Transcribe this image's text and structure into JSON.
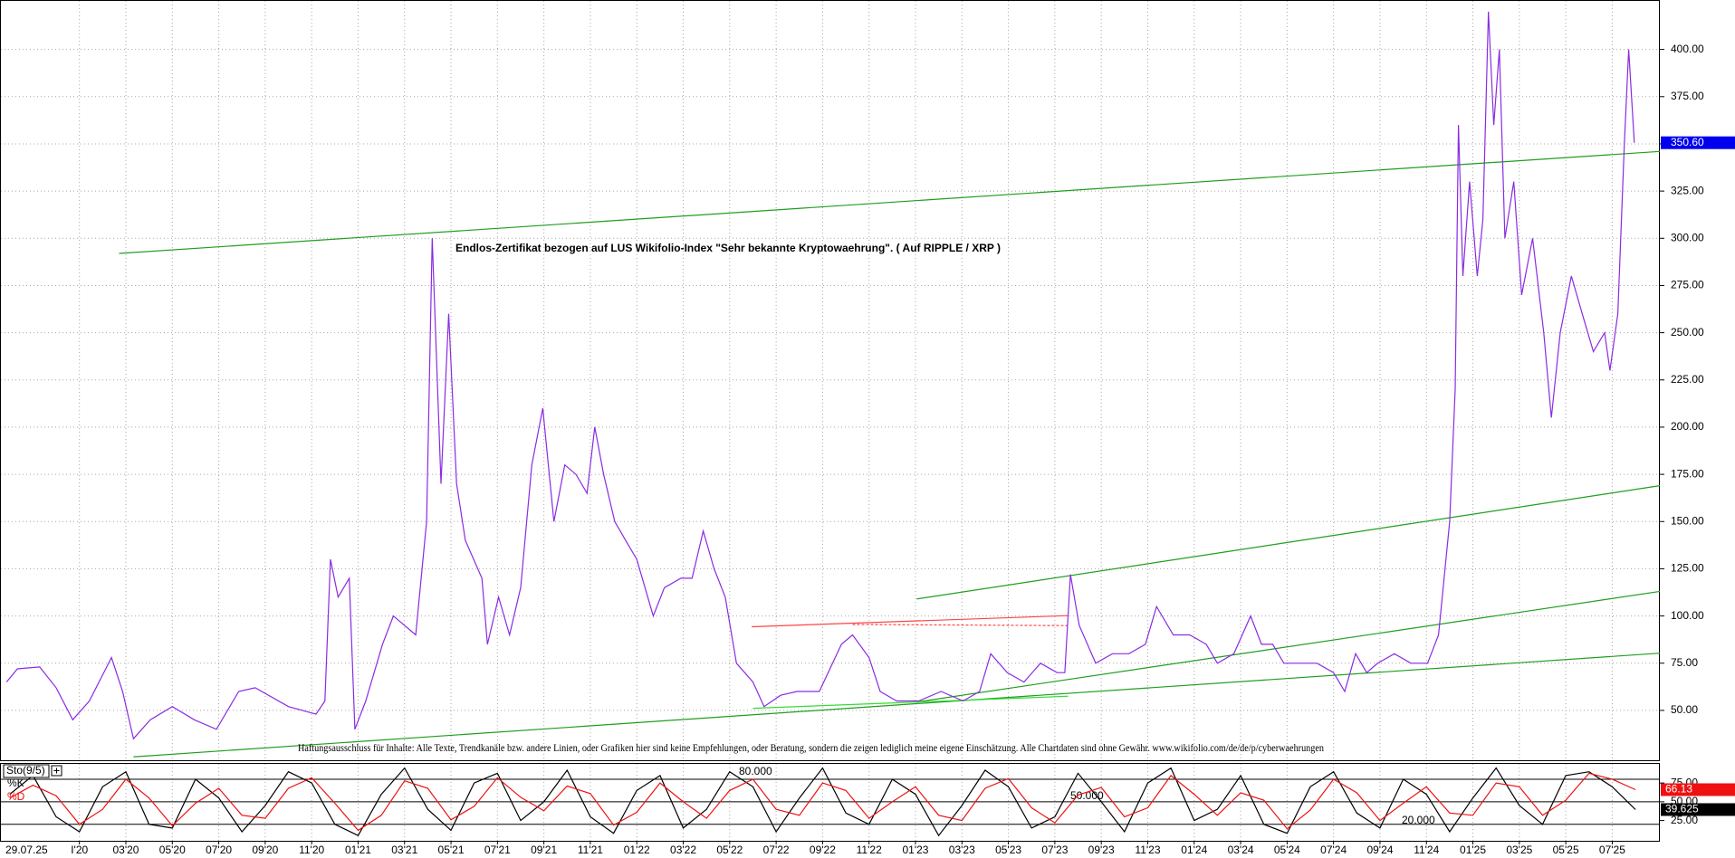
{
  "chart_data": [
    {
      "type": "line",
      "date_label": "29.07.25",
      "annotations": [
        "Endlos-Zertifikat bezogen auf LUS Wikifolio-Index \"Sehr bekannte Kryptowaehrung\". ( Auf RIPPLE / XRP )",
        "Haftungsausschluss für Inhalte: Alle Texte, Trendkanäle bzw. andere Linien, oder Grafiken hier sind keine Empfehlungen, oder Beratung, sondern die zeigen lediglich meine eigene Einschätzung. Alle Chartdaten sind ohne Gewähr.  www.wikifolio.com/de/de/p/cyberwaehrungen"
      ],
      "x": [
        -3.14,
        -2.67,
        -1.71,
        -1.0,
        -0.29,
        0.43,
        1.38,
        1.86,
        2.33,
        3.05,
        4.0,
        4.95,
        5.9,
        6.86,
        7.57,
        9.0,
        10.19,
        10.57,
        10.81,
        11.14,
        11.62,
        11.86,
        12.33,
        13.05,
        13.52,
        14.48,
        14.95,
        15.19,
        15.57,
        15.9,
        16.24,
        16.62,
        17.33,
        17.57,
        18.05,
        18.52,
        19.0,
        19.48,
        19.95,
        20.43,
        20.9,
        21.38,
        21.86,
        22.19,
        22.57,
        23.05,
        23.52,
        24.0,
        24.71,
        25.19,
        25.9,
        26.38,
        26.86,
        27.33,
        27.81,
        28.29,
        29.0,
        29.48,
        30.19,
        30.9,
        31.86,
        32.81,
        33.29,
        34.0,
        34.48,
        35.19,
        36.14,
        37.1,
        38.05,
        38.76,
        39.24,
        39.95,
        40.67,
        41.38,
        42.1,
        42.43,
        42.67,
        43.05,
        43.76,
        44.48,
        45.19,
        45.9,
        46.38,
        47.1,
        47.81,
        48.52,
        49.0,
        49.71,
        50.43,
        50.9,
        51.38,
        51.86,
        52.57,
        53.29,
        54.0,
        54.48,
        54.95,
        55.43,
        55.9,
        56.62,
        57.33,
        58.05,
        58.52,
        59.0,
        59.24,
        59.38,
        59.57,
        59.86,
        60.19,
        60.43,
        60.67,
        60.9,
        61.14,
        61.38,
        61.76,
        62.1,
        62.57,
        63.05,
        63.38,
        63.76,
        64.24,
        64.71,
        65.19,
        65.67,
        65.9,
        66.24,
        66.52,
        66.71,
        66.95
      ],
      "series": [
        {
          "color": "#8a2be2",
          "values": [
            65,
            72,
            73,
            62,
            45,
            55,
            78,
            60,
            35,
            45,
            52,
            45,
            40,
            60,
            62,
            52,
            48,
            55,
            130,
            110,
            120,
            40,
            55,
            85,
            100,
            90,
            150,
            300,
            170,
            260,
            170,
            140,
            120,
            85,
            110,
            90,
            115,
            180,
            210,
            150,
            180,
            175,
            165,
            200,
            175,
            150,
            140,
            130,
            100,
            115,
            120,
            120,
            145,
            125,
            110,
            75,
            65,
            52,
            58,
            60,
            60,
            85,
            90,
            78,
            60,
            55,
            55,
            60,
            55,
            60,
            80,
            70,
            65,
            75,
            70,
            70,
            122,
            95,
            75,
            80,
            80,
            85,
            105,
            90,
            90,
            85,
            75,
            80,
            100,
            85,
            85,
            75,
            75,
            75,
            70,
            60,
            80,
            70,
            75,
            80,
            75,
            75,
            90,
            150,
            220,
            360,
            280,
            330,
            280,
            310,
            420,
            360,
            400,
            300,
            330,
            270,
            300,
            250,
            205,
            250,
            280,
            260,
            240,
            250,
            230,
            260,
            350,
            400,
            350.6
          ]
        }
      ],
      "last_value": {
        "value": 350.6,
        "label": "350.60"
      },
      "trendlines": [
        {
          "color": "#1f9e1f",
          "from": [
            1.71,
            292
          ],
          "to": [
            68.05,
            346
          ]
        },
        {
          "color": "#1f9e1f",
          "from": [
            36.05,
            109
          ],
          "to": [
            68.05,
            169
          ]
        },
        {
          "color": "#1f9e1f",
          "from": [
            2.33,
            25.4
          ],
          "to": [
            68.05,
            80.3
          ]
        },
        {
          "color": "#1f9e1f",
          "from": [
            36.14,
            54.6
          ],
          "to": [
            68.05,
            113
          ]
        },
        {
          "color": "#33dd33",
          "from": [
            29.0,
            51.1
          ],
          "to": [
            42.57,
            57.5
          ]
        },
        {
          "color": "#ff4444",
          "from": [
            28.95,
            94.3
          ],
          "to": [
            42.57,
            100.2
          ]
        },
        {
          "color": "#ff4444",
          "from": [
            33.29,
            95.5
          ],
          "to": [
            42.57,
            94.9
          ],
          "dashed": true
        }
      ],
      "xlim": [
        -3.38,
        68.05
      ],
      "ylim": [
        23.6,
        425.7
      ],
      "xticks": [
        {
          "value": 0,
          "label": "I'20"
        },
        {
          "value": 2,
          "label": "03'20"
        },
        {
          "value": 4,
          "label": "05'20"
        },
        {
          "value": 6,
          "label": "07'20"
        },
        {
          "value": 8,
          "label": "09'20"
        },
        {
          "value": 10,
          "label": "11'20"
        },
        {
          "value": 12,
          "label": "01'21"
        },
        {
          "value": 14,
          "label": "03'21"
        },
        {
          "value": 16,
          "label": "05'21"
        },
        {
          "value": 18,
          "label": "07'21"
        },
        {
          "value": 20,
          "label": "09'21"
        },
        {
          "value": 22,
          "label": "11'21"
        },
        {
          "value": 24,
          "label": "01'22"
        },
        {
          "value": 26,
          "label": "03'22"
        },
        {
          "value": 28,
          "label": "05'22"
        },
        {
          "value": 30,
          "label": "07'22"
        },
        {
          "value": 32,
          "label": "09'22"
        },
        {
          "value": 34,
          "label": "11'22"
        },
        {
          "value": 36,
          "label": "01'23"
        },
        {
          "value": 38,
          "label": "03'23"
        },
        {
          "value": 40,
          "label": "05'23"
        },
        {
          "value": 42,
          "label": "07'23"
        },
        {
          "value": 44,
          "label": "09'23"
        },
        {
          "value": 46,
          "label": "11'23"
        },
        {
          "value": 48,
          "label": "01'24"
        },
        {
          "value": 50,
          "label": "03'24"
        },
        {
          "value": 52,
          "label": "05'24"
        },
        {
          "value": 54,
          "label": "07'24"
        },
        {
          "value": 56,
          "label": "09'24"
        },
        {
          "value": 58,
          "label": "11'24"
        },
        {
          "value": 60,
          "label": "01'25"
        },
        {
          "value": 62,
          "label": "03'25"
        },
        {
          "value": 64,
          "label": "05'25"
        },
        {
          "value": 66,
          "label": "07'25"
        }
      ],
      "yticks": [
        {
          "value": 50,
          "label": "50.00"
        },
        {
          "value": 75,
          "label": "75.00"
        },
        {
          "value": 100,
          "label": "100.00"
        },
        {
          "value": 125,
          "label": "125.00"
        },
        {
          "value": 150,
          "label": "150.00"
        },
        {
          "value": 175,
          "label": "175.00"
        },
        {
          "value": 200,
          "label": "200.00"
        },
        {
          "value": 225,
          "label": "225.00"
        },
        {
          "value": 250,
          "label": "250.00"
        },
        {
          "value": 275,
          "label": "275.00"
        },
        {
          "value": 300,
          "label": "300.00"
        },
        {
          "value": 325,
          "label": "325.00"
        },
        {
          "value": 350,
          "label": "350.00"
        },
        {
          "value": 375,
          "label": "375.00"
        },
        {
          "value": 400,
          "label": "400.00"
        }
      ],
      "grid": true
    },
    {
      "type": "line",
      "title": "Sto(9/5)",
      "x": [
        -3,
        -2,
        -1,
        0,
        1,
        2,
        3,
        4,
        5,
        6,
        7,
        8,
        9,
        10,
        11,
        12,
        13,
        14,
        15,
        16,
        17,
        18,
        19,
        20,
        21,
        22,
        23,
        24,
        25,
        26,
        27,
        28,
        29,
        30,
        31,
        32,
        33,
        34,
        35,
        36,
        37,
        38,
        39,
        40,
        41,
        42,
        43,
        44,
        45,
        46,
        47,
        48,
        49,
        50,
        51,
        52,
        53,
        54,
        55,
        56,
        57,
        58,
        59,
        60,
        61,
        62,
        63,
        64,
        65,
        66,
        67
      ],
      "series": [
        {
          "name": "%K",
          "color": "#000000",
          "values": [
            60,
            85,
            30,
            10,
            70,
            90,
            20,
            15,
            80,
            55,
            10,
            45,
            90,
            75,
            20,
            5,
            60,
            95,
            40,
            12,
            75,
            88,
            25,
            50,
            92,
            30,
            8,
            65,
            85,
            15,
            40,
            90,
            70,
            10,
            55,
            95,
            35,
            20,
            80,
            60,
            5,
            45,
            92,
            70,
            15,
            30,
            88,
            50,
            10,
            75,
            95,
            25,
            40,
            85,
            20,
            8,
            70,
            90,
            35,
            15,
            80,
            60,
            10,
            55,
            95,
            45,
            20,
            85,
            90,
            70,
            39.625
          ]
        },
        {
          "name": "%D",
          "color": "#ee1111",
          "values": [
            55,
            72,
            58,
            20,
            40,
            80,
            55,
            18,
            48,
            68,
            32,
            28,
            68,
            82,
            48,
            12,
            32,
            78,
            68,
            26,
            44,
            82,
            56,
            38,
            71,
            61,
            19,
            36,
            75,
            50,
            28,
            65,
            80,
            40,
            32,
            75,
            65,
            28,
            50,
            70,
            32,
            25,
            68,
            81,
            42,
            22,
            59,
            69,
            30,
            42,
            85,
            60,
            32,
            62,
            52,
            14,
            39,
            80,
            62,
            25,
            48,
            70,
            35,
            32,
            75,
            70,
            32,
            52,
            88,
            80,
            66.13
          ]
        }
      ],
      "levels": [
        {
          "value": 80,
          "label": "80.000"
        },
        {
          "value": 50,
          "label": "50.000"
        },
        {
          "value": 20,
          "label": "20.000"
        }
      ],
      "xlim": [
        -3.38,
        68.05
      ],
      "ylim": [
        -2,
        100.5
      ],
      "yticks": [
        {
          "value": 25,
          "label": "25.00"
        },
        {
          "value": 50,
          "label": "50.00"
        },
        {
          "value": 75,
          "label": "75.00"
        }
      ]
    }
  ]
}
